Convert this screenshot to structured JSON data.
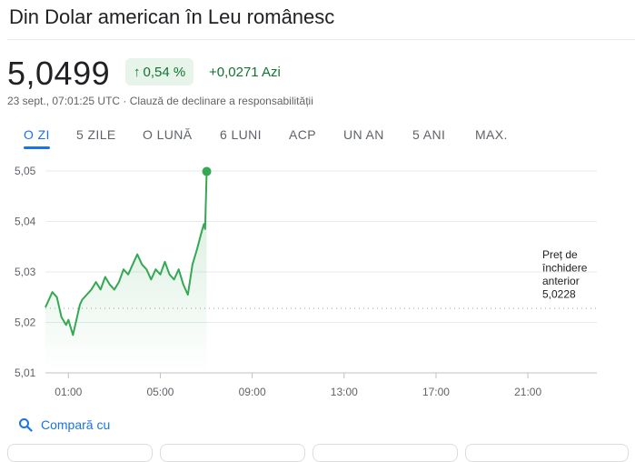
{
  "header": {
    "title": "Din Dolar american în Leu românesc"
  },
  "quote": {
    "price": "5,0499",
    "change_arrow": "↑",
    "change_pct": "0,54 %",
    "change_abs": "+0,0271 Azi",
    "meta": "23 sept., 07:01:25 UTC · Clauză de declinare a responsabilității"
  },
  "colors": {
    "up": "#137333",
    "line": "#34a853",
    "accent": "#1a73e8"
  },
  "tabs": [
    {
      "label": "O ZI",
      "active": true
    },
    {
      "label": "5 ZILE"
    },
    {
      "label": "O LUNĂ"
    },
    {
      "label": "6 LUNI"
    },
    {
      "label": "ACP"
    },
    {
      "label": "UN AN"
    },
    {
      "label": "5 ANI"
    },
    {
      "label": "MAX."
    }
  ],
  "chart_data": {
    "type": "line",
    "y_ticks": [
      "5,01",
      "5,02",
      "5,03",
      "5,04",
      "5,05"
    ],
    "ylim": [
      5.01,
      5.05
    ],
    "x_ticks": [
      "01:00",
      "05:00",
      "09:00",
      "13:00",
      "17:00",
      "21:00"
    ],
    "x_tick_hours": [
      1,
      5,
      9,
      13,
      17,
      21
    ],
    "xlim": [
      0,
      24
    ],
    "grid": true,
    "previous_close": {
      "label_lines": [
        "Preț de",
        "închidere",
        "anterior",
        "5,0228"
      ],
      "value": 5.0228
    },
    "series": [
      {
        "x": [
          0,
          0.15,
          0.3,
          0.5,
          0.7,
          0.9,
          1.0,
          1.2,
          1.4,
          1.5,
          1.6,
          1.8,
          2.0,
          2.2,
          2.4,
          2.6,
          2.8,
          3.0,
          3.2,
          3.4,
          3.6,
          3.8,
          4.0,
          4.2,
          4.4,
          4.6,
          4.8,
          5.0,
          5.2,
          5.4,
          5.6,
          5.8,
          6.0,
          6.2,
          6.4,
          6.6,
          6.8,
          6.9,
          6.95,
          7.02
        ],
        "y": [
          5.023,
          5.0245,
          5.026,
          5.025,
          5.021,
          5.0195,
          5.0205,
          5.0175,
          5.0215,
          5.0235,
          5.0245,
          5.0255,
          5.0265,
          5.028,
          5.0265,
          5.029,
          5.0275,
          5.0265,
          5.028,
          5.0305,
          5.0295,
          5.0315,
          5.0335,
          5.0315,
          5.0305,
          5.0285,
          5.0305,
          5.0295,
          5.032,
          5.0295,
          5.0285,
          5.0305,
          5.0275,
          5.0255,
          5.0315,
          5.0345,
          5.038,
          5.0395,
          5.0385,
          5.0499
        ]
      }
    ]
  },
  "compare": {
    "label": "Compară cu"
  }
}
